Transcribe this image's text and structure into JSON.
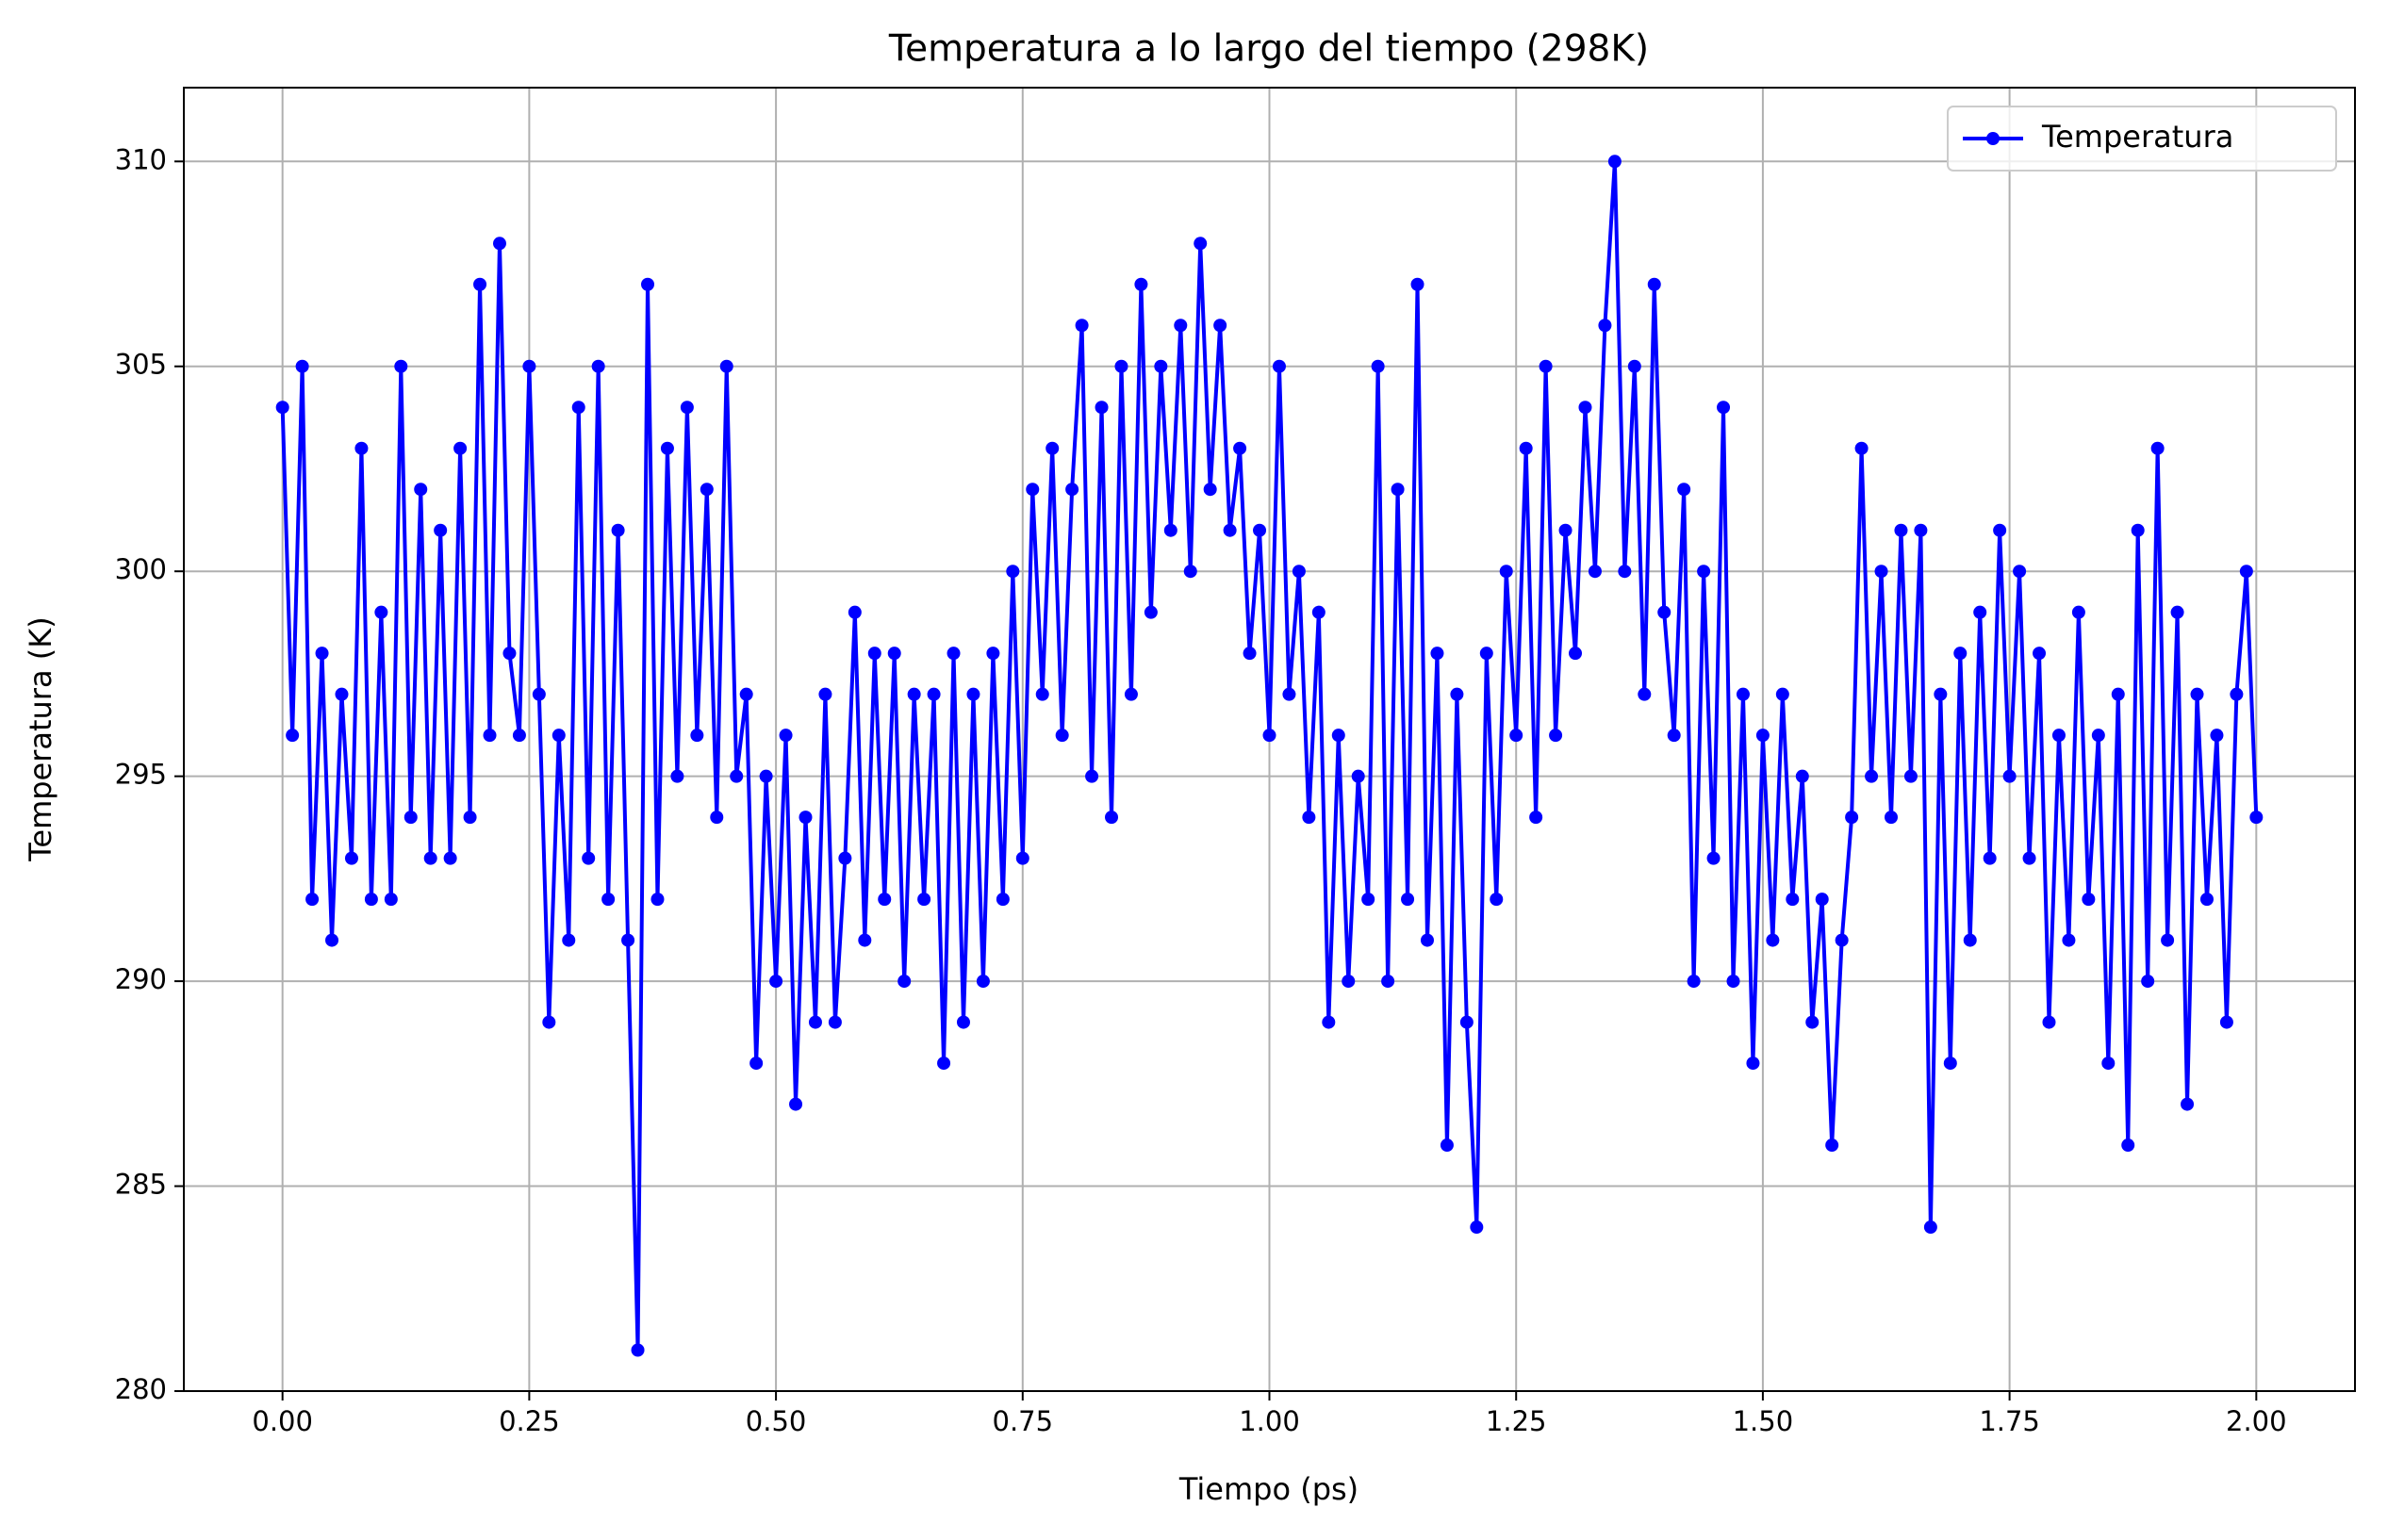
{
  "chart_data": {
    "type": "line",
    "title": "Temperatura a lo largo del tiempo (298K)",
    "x_label": "Tiempo (ps)",
    "y_label": "Temperatura (K)",
    "x": [
      0.0,
      0.01,
      0.02,
      0.03,
      0.04,
      0.05,
      0.06,
      0.07,
      0.08,
      0.09,
      0.1,
      0.11,
      0.12,
      0.13,
      0.14,
      0.15,
      0.16,
      0.17,
      0.18,
      0.19,
      0.2,
      0.21,
      0.22,
      0.23,
      0.24,
      0.25,
      0.26,
      0.27,
      0.28,
      0.29,
      0.3,
      0.31,
      0.32,
      0.33,
      0.34,
      0.35,
      0.36,
      0.37,
      0.38,
      0.39,
      0.4,
      0.41,
      0.42,
      0.43,
      0.44,
      0.45,
      0.46,
      0.47,
      0.48,
      0.49,
      0.5,
      0.51,
      0.52,
      0.53,
      0.54,
      0.55,
      0.56,
      0.57,
      0.58,
      0.59,
      0.6,
      0.61,
      0.62,
      0.63,
      0.64,
      0.65,
      0.66,
      0.67,
      0.68,
      0.69,
      0.7,
      0.71,
      0.72,
      0.73,
      0.74,
      0.75,
      0.76,
      0.77,
      0.78,
      0.79,
      0.8,
      0.81,
      0.82,
      0.83,
      0.84,
      0.85,
      0.86,
      0.87,
      0.88,
      0.89,
      0.9,
      0.91,
      0.92,
      0.93,
      0.94,
      0.95,
      0.96,
      0.97,
      0.98,
      0.99,
      1.0,
      1.01,
      1.02,
      1.03,
      1.04,
      1.05,
      1.06,
      1.07,
      1.08,
      1.09,
      1.1,
      1.11,
      1.12,
      1.13,
      1.14,
      1.15,
      1.16,
      1.17,
      1.18,
      1.19,
      1.2,
      1.21,
      1.22,
      1.23,
      1.24,
      1.25,
      1.26,
      1.27,
      1.28,
      1.29,
      1.3,
      1.31,
      1.32,
      1.33,
      1.34,
      1.35,
      1.36,
      1.37,
      1.38,
      1.39,
      1.4,
      1.41,
      1.42,
      1.43,
      1.44,
      1.45,
      1.46,
      1.47,
      1.48,
      1.49,
      1.5,
      1.51,
      1.52,
      1.53,
      1.54,
      1.55,
      1.56,
      1.57,
      1.58,
      1.59,
      1.6,
      1.61,
      1.62,
      1.63,
      1.64,
      1.65,
      1.66,
      1.67,
      1.68,
      1.69,
      1.7,
      1.71,
      1.72,
      1.73,
      1.74,
      1.75,
      1.76,
      1.77,
      1.78,
      1.79,
      1.8,
      1.81,
      1.82,
      1.83,
      1.84,
      1.85,
      1.86,
      1.87,
      1.88,
      1.89,
      1.9,
      1.91,
      1.92,
      1.93,
      1.94,
      1.95,
      1.96,
      1.97,
      1.98,
      1.99,
      2.0
    ],
    "series": [
      {
        "name": "Temperatura",
        "color": "#0000ff",
        "values": [
          304,
          296,
          305,
          292,
          298,
          291,
          297,
          293,
          303,
          292,
          299,
          292,
          305,
          294,
          302,
          293,
          301,
          293,
          303,
          294,
          307,
          296,
          308,
          298,
          296,
          305,
          297,
          289,
          296,
          291,
          304,
          293,
          305,
          292,
          301,
          291,
          281,
          307,
          292,
          303,
          295,
          304,
          296,
          302,
          294,
          305,
          295,
          297,
          288,
          295,
          290,
          296,
          287,
          294,
          289,
          297,
          289,
          293,
          299,
          291,
          298,
          292,
          298,
          290,
          297,
          292,
          297,
          288,
          298,
          289,
          297,
          290,
          298,
          292,
          300,
          293,
          302,
          297,
          303,
          296,
          302,
          306,
          295,
          304,
          294,
          305,
          297,
          307,
          299,
          305,
          301,
          306,
          300,
          308,
          302,
          306,
          301,
          303,
          298,
          301,
          296,
          305,
          297,
          300,
          294,
          299,
          289,
          296,
          290,
          295,
          292,
          305,
          290,
          302,
          292,
          307,
          291,
          298,
          286,
          297,
          289,
          284,
          298,
          292,
          300,
          296,
          303,
          294,
          305,
          296,
          301,
          298,
          304,
          300,
          306,
          310,
          300,
          305,
          297,
          307,
          299,
          296,
          302,
          290,
          300,
          293,
          304,
          290,
          297,
          288,
          296,
          291,
          297,
          292,
          295,
          289,
          292,
          286,
          291,
          294,
          303,
          295,
          300,
          294,
          301,
          295,
          301,
          284,
          297,
          288,
          298,
          291,
          299,
          293,
          301,
          295,
          300,
          293,
          298,
          289,
          296,
          291,
          299,
          292,
          296,
          288,
          297,
          286,
          301,
          290,
          303,
          291,
          299,
          287,
          297,
          292,
          296,
          289,
          297,
          300,
          294
        ]
      }
    ],
    "xlim": [
      -0.1,
      2.1
    ],
    "ylim": [
      280,
      311.8
    ],
    "xticks": [
      {
        "value": 0,
        "label": "0.00"
      },
      {
        "value": 0.25,
        "label": "0.25"
      },
      {
        "value": 0.5,
        "label": "0.50"
      },
      {
        "value": 0.75,
        "label": "0.75"
      },
      {
        "value": 1,
        "label": "1.00"
      },
      {
        "value": 1.25,
        "label": "1.25"
      },
      {
        "value": 1.5,
        "label": "1.50"
      },
      {
        "value": 1.75,
        "label": "1.75"
      },
      {
        "value": 2,
        "label": "2.00"
      }
    ],
    "yticks": [
      280,
      285,
      290,
      295,
      300,
      305,
      310
    ],
    "grid": true,
    "legend": "upper right"
  }
}
